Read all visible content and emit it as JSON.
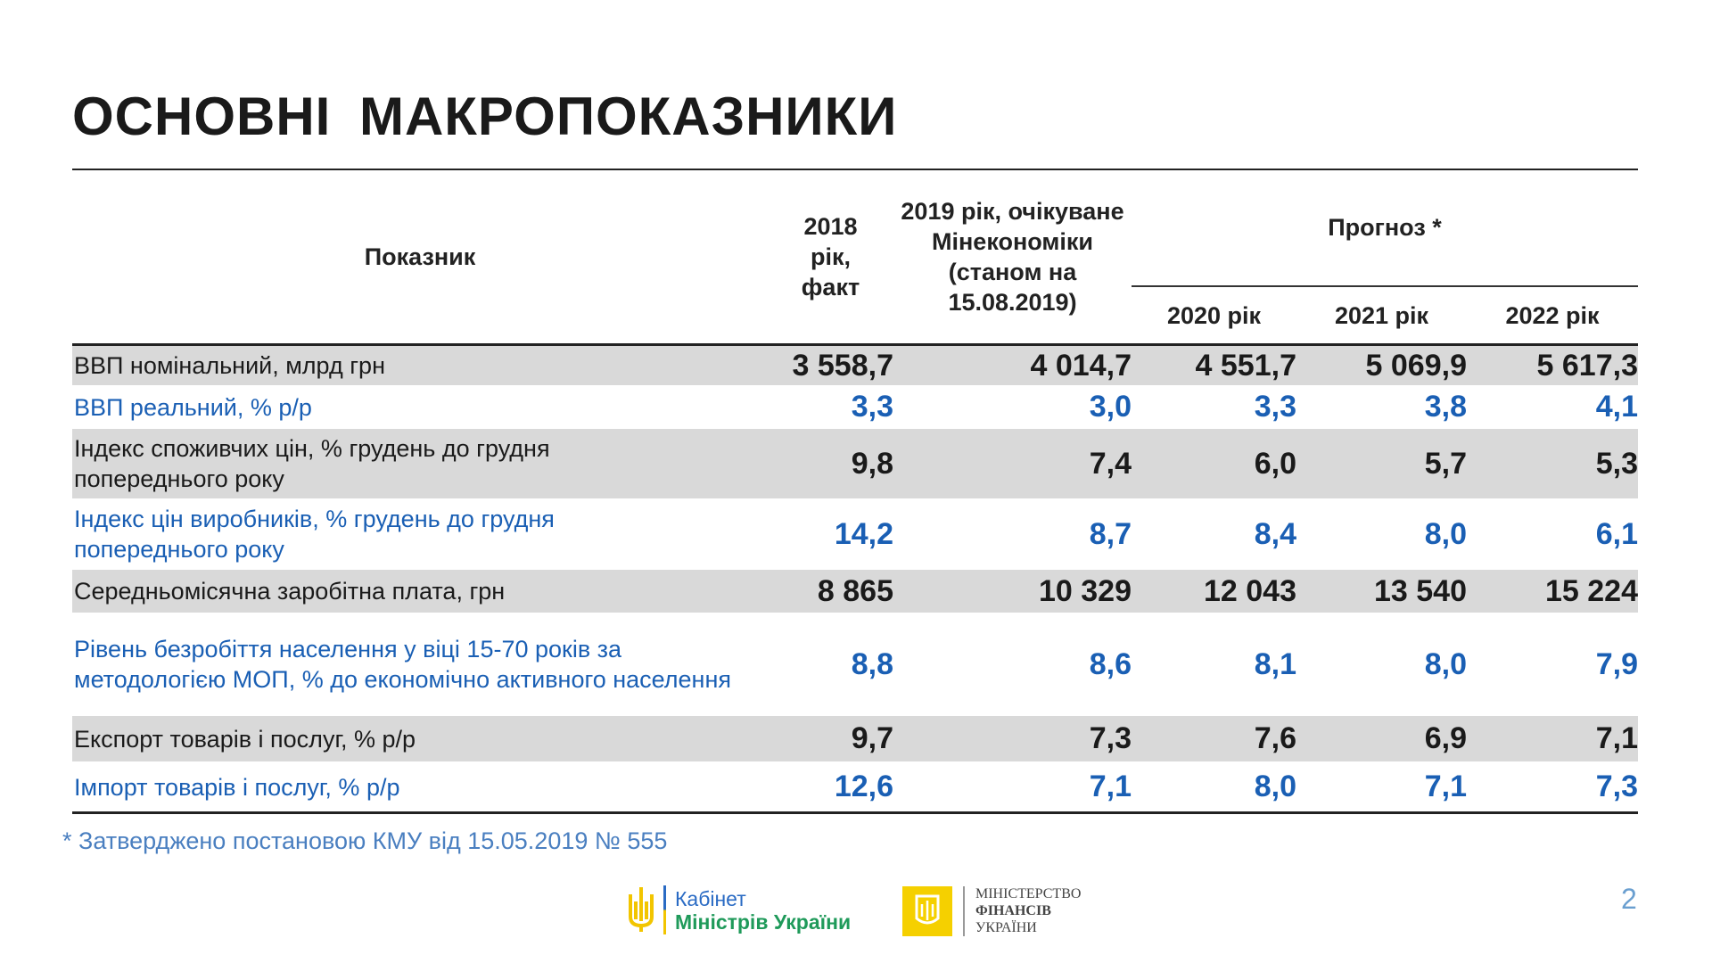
{
  "title": "ОСНОВНІ  МАКРОПОКАЗНИКИ",
  "header": {
    "indicator": "Показник",
    "y2018": "2018 рік, факт",
    "y2019": "2019 рік, очікуване Мінекономіки (станом на 15.08.2019)",
    "forecast": "Прогноз *",
    "y2020": "2020 рік",
    "y2021": "2021 рік",
    "y2022": "2022 рік"
  },
  "rows": [
    {
      "label": "ВВП номінальний, млрд грн",
      "values": [
        "3 558,7",
        "4 014,7",
        "4 551,7",
        "5 069,9",
        "5 617,3"
      ]
    },
    {
      "label": "ВВП реальний,  % р/р",
      "values": [
        "3,3",
        "3,0",
        "3,3",
        "3,8",
        "4,1"
      ]
    },
    {
      "label": "Індекс споживчих цін, % грудень до грудня попереднього року",
      "values": [
        "9,8",
        "7,4",
        "6,0",
        "5,7",
        "5,3"
      ]
    },
    {
      "label": "Індекс цін виробників, % грудень до грудня попереднього року",
      "values": [
        "14,2",
        "8,7",
        "8,4",
        "8,0",
        "6,1"
      ]
    },
    {
      "label": "Середньомісячна заробітна плата, грн",
      "values": [
        "8 865",
        "10 329",
        "12 043",
        "13 540",
        "15 224"
      ]
    },
    {
      "label": "Рівень безробіття населення у віці 15-70 років за методологією МОП, % до економічно активного населення",
      "values": [
        "8,8",
        "8,6",
        "8,1",
        "8,0",
        "7,9"
      ]
    },
    {
      "label": "Експорт товарів і послуг, % р/р",
      "values": [
        "9,7",
        "7,3",
        "7,6",
        "6,9",
        "7,1"
      ]
    },
    {
      "label": "Імпорт товарів і послуг, % р/р",
      "values": [
        "12,6",
        "7,1",
        "8,0",
        "7,1",
        "7,3"
      ]
    }
  ],
  "footnote": "*  Затверджено постановою КМУ від 15.05.2019 № 555",
  "logos": {
    "cabinet_line1": "Кабінет",
    "cabinet_line2": "Міністрів України",
    "minfin_line1": "МІНІСТЕРСТВО",
    "minfin_line2": "ФІНАНСІВ",
    "minfin_line3": "УКРАЇНИ"
  },
  "page_number": "2"
}
